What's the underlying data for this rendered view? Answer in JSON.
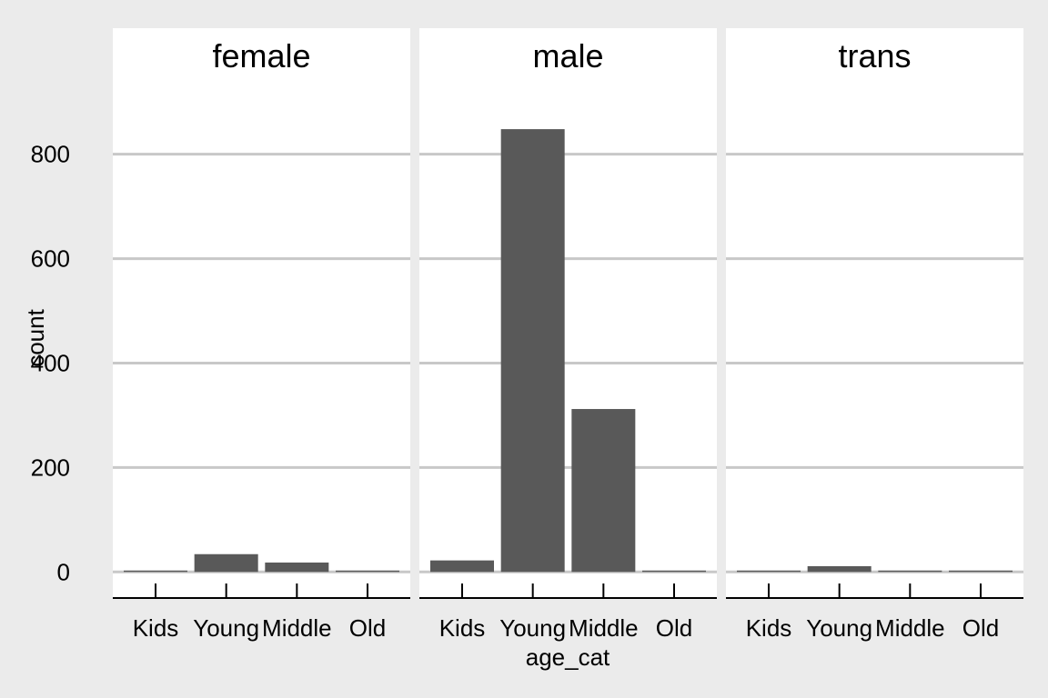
{
  "chart_data": {
    "type": "bar",
    "facet_variable": "gender",
    "facets": [
      "female",
      "male",
      "trans"
    ],
    "categories": [
      "Kids",
      "Young",
      "Middle",
      "Old"
    ],
    "series": [
      {
        "facet": "female",
        "values": [
          2,
          34,
          18,
          0
        ]
      },
      {
        "facet": "male",
        "values": [
          22,
          848,
          312,
          2
        ]
      },
      {
        "facet": "trans",
        "values": [
          1,
          11,
          2,
          2
        ]
      }
    ],
    "xlabel": "age_cat",
    "ylabel": "count",
    "ylim": [
      -50,
      930
    ],
    "yticks": [
      0,
      200,
      400,
      600,
      800
    ],
    "grid": {
      "major_y": true,
      "major_x": false
    },
    "colors": {
      "background": "#ebebeb",
      "panel": "#ffffff",
      "bar": "#595959",
      "grid": "#c8c8c8",
      "axis": "#000000"
    },
    "legend": "none"
  }
}
